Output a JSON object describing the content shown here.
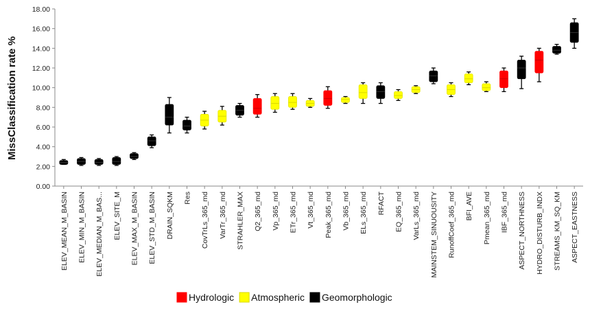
{
  "chart_data": {
    "type": "box",
    "ylabel": "MissClassification rate %",
    "xlabel": "",
    "ylim": [
      0,
      18
    ],
    "yticks": [
      "0.00",
      "2.00",
      "4.00",
      "6.00",
      "8.00",
      "10.00",
      "12.00",
      "14.00",
      "16.00",
      "18.00"
    ],
    "grid": false,
    "legend_position": "bottom",
    "legend": [
      {
        "name": "Hydrologic",
        "color": "#ff0000"
      },
      {
        "name": "Atmospheric",
        "color": "#ffff00"
      },
      {
        "name": "Geomorphologic",
        "color": "#000000"
      }
    ],
    "series": [
      {
        "label": "ELEV_MEAN_M_BASIN",
        "group": "Geomorphologic",
        "min": 2.2,
        "q1": 2.2,
        "median": 2.4,
        "q3": 2.6,
        "max": 2.7
      },
      {
        "label": "ELEV_MIN_M_BASIN",
        "group": "Geomorphologic",
        "min": 2.1,
        "q1": 2.2,
        "median": 2.5,
        "q3": 2.8,
        "max": 2.9
      },
      {
        "label": "ELEV_MEDIAN_M_BAS...",
        "group": "Geomorphologic",
        "min": 2.1,
        "q1": 2.2,
        "median": 2.4,
        "q3": 2.7,
        "max": 2.8
      },
      {
        "label": "ELEV_SITE_M",
        "group": "Geomorphologic",
        "min": 2.1,
        "q1": 2.2,
        "median": 2.5,
        "q3": 2.9,
        "max": 3.0
      },
      {
        "label": "ELEV_MAX_M_BASIN",
        "group": "Geomorphologic",
        "min": 2.7,
        "q1": 2.8,
        "median": 3.0,
        "q3": 3.3,
        "max": 3.4
      },
      {
        "label": "ELEV_STD_M_BASIN",
        "group": "Geomorphologic",
        "min": 3.9,
        "q1": 4.1,
        "median": 4.6,
        "q3": 5.0,
        "max": 5.2
      },
      {
        "label": "DRAIN_SQKM",
        "group": "Geomorphologic",
        "min": 5.4,
        "q1": 6.2,
        "median": 7.0,
        "q3": 8.3,
        "max": 9.0
      },
      {
        "label": "Res",
        "group": "Geomorphologic",
        "min": 5.4,
        "q1": 5.7,
        "median": 6.1,
        "q3": 6.7,
        "max": 7.0
      },
      {
        "label": "CovTrLs_365_md",
        "group": "Atmospheric",
        "min": 5.8,
        "q1": 6.1,
        "median": 6.7,
        "q3": 7.3,
        "max": 7.6
      },
      {
        "label": "VarTr_365_md",
        "group": "Atmospheric",
        "min": 6.2,
        "q1": 6.5,
        "median": 7.1,
        "q3": 7.7,
        "max": 8.1
      },
      {
        "label": "STRAHLER_MAX",
        "group": "Geomorphologic",
        "min": 7.0,
        "q1": 7.2,
        "median": 7.7,
        "q3": 8.2,
        "max": 8.4
      },
      {
        "label": "Q2_365_md",
        "group": "Hydrologic",
        "min": 7.0,
        "q1": 7.3,
        "median": 7.9,
        "q3": 8.9,
        "max": 9.3
      },
      {
        "label": "Vp_365_md",
        "group": "Atmospheric",
        "min": 7.5,
        "q1": 7.8,
        "median": 8.4,
        "q3": 9.1,
        "max": 9.4
      },
      {
        "label": "ETr_365_md",
        "group": "Atmospheric",
        "min": 7.8,
        "q1": 8.0,
        "median": 8.5,
        "q3": 9.1,
        "max": 9.4
      },
      {
        "label": "Vt_365_md",
        "group": "Atmospheric",
        "min": 8.0,
        "q1": 8.1,
        "median": 8.4,
        "q3": 8.7,
        "max": 8.9
      },
      {
        "label": "Peak_365_md",
        "group": "Hydrologic",
        "min": 7.9,
        "q1": 8.2,
        "median": 8.9,
        "q3": 9.7,
        "max": 10.1
      },
      {
        "label": "Vb_365_md",
        "group": "Atmospheric",
        "min": 8.4,
        "q1": 8.5,
        "median": 8.8,
        "q3": 9.0,
        "max": 9.1
      },
      {
        "label": "ELs_365_md",
        "group": "Atmospheric",
        "min": 8.4,
        "q1": 8.9,
        "median": 9.5,
        "q3": 10.3,
        "max": 10.5
      },
      {
        "label": "RFACT",
        "group": "Geomorphologic",
        "min": 8.4,
        "q1": 8.9,
        "median": 9.6,
        "q3": 10.2,
        "max": 10.5
      },
      {
        "label": "EQ_365_md",
        "group": "Atmospheric",
        "min": 8.7,
        "q1": 8.9,
        "median": 9.2,
        "q3": 9.6,
        "max": 9.8
      },
      {
        "label": "VarLs_365_md",
        "group": "Atmospheric",
        "min": 9.4,
        "q1": 9.5,
        "median": 9.8,
        "q3": 10.1,
        "max": 10.2
      },
      {
        "label": "MAINSTEM_SINUOUSITY",
        "group": "Geomorphologic",
        "min": 10.4,
        "q1": 10.6,
        "median": 11.2,
        "q3": 11.7,
        "max": 12.0
      },
      {
        "label": "RunoffCoef_365_md",
        "group": "Atmospheric",
        "min": 9.1,
        "q1": 9.3,
        "median": 9.8,
        "q3": 10.3,
        "max": 10.5
      },
      {
        "label": "BFI_AVE",
        "group": "Atmospheric",
        "min": 10.3,
        "q1": 10.5,
        "median": 10.9,
        "q3": 11.4,
        "max": 11.6
      },
      {
        "label": "Pmean_365_md",
        "group": "Atmospheric",
        "min": 9.6,
        "q1": 9.7,
        "median": 10.0,
        "q3": 10.4,
        "max": 10.6
      },
      {
        "label": "IBF_365_md",
        "group": "Hydrologic",
        "min": 9.6,
        "q1": 10.0,
        "median": 10.9,
        "q3": 11.7,
        "max": 12.0
      },
      {
        "label": "ASPECT_NORTHNESS",
        "group": "Geomorphologic",
        "min": 9.9,
        "q1": 10.9,
        "median": 12.0,
        "q3": 12.8,
        "max": 13.2
      },
      {
        "label": "HYDRO_DISTURB_INDX",
        "group": "Hydrologic",
        "min": 10.6,
        "q1": 11.5,
        "median": 12.8,
        "q3": 13.7,
        "max": 14.0
      },
      {
        "label": "STREAMS_KM_SQ_KM",
        "group": "Geomorphologic",
        "min": 13.4,
        "q1": 13.5,
        "median": 13.8,
        "q3": 14.2,
        "max": 14.4
      },
      {
        "label": "ASPECT_EASTNESS",
        "group": "Geomorphologic",
        "min": 14.0,
        "q1": 14.6,
        "median": 15.6,
        "q3": 16.6,
        "max": 17.0
      }
    ]
  }
}
